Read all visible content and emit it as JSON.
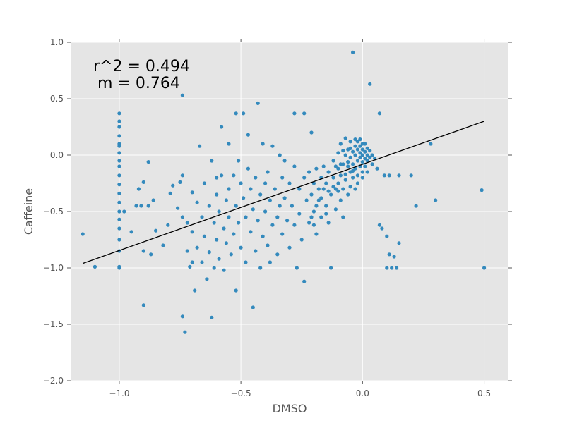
{
  "chart_data": {
    "type": "scatter",
    "xlabel": "DMSO",
    "ylabel": "Caffeine",
    "xlim": [
      -1.2,
      0.6
    ],
    "ylim": [
      -2.0,
      1.0
    ],
    "xticks": [
      -1.0,
      -0.5,
      0.0,
      0.5
    ],
    "xtick_labels": [
      "−1.0",
      "−0.5",
      "0.0",
      "0.5"
    ],
    "yticks": [
      1.0,
      0.5,
      0.0,
      -0.5,
      -1.0,
      -1.5,
      -2.0
    ],
    "ytick_labels": [
      "1.0",
      "0.5",
      "0.0",
      "−0.5",
      "−1.0",
      "−1.5",
      "−2.0"
    ],
    "grid": true,
    "annotations": [
      "r^2 = 0.494",
      "m = 0.764"
    ],
    "point_color": "#348abd",
    "line_color": "#000000",
    "background_color": "#e5e5e5",
    "fit_line": {
      "x": [
        -1.15,
        0.5
      ],
      "y": [
        -0.96,
        0.3
      ]
    },
    "points": [
      [
        -1.15,
        -0.7
      ],
      [
        -1.1,
        -0.99
      ],
      [
        -1.0,
        0.37
      ],
      [
        -1.0,
        0.3
      ],
      [
        -1.0,
        0.25
      ],
      [
        -1.0,
        0.17
      ],
      [
        -1.0,
        0.1
      ],
      [
        -1.0,
        0.08
      ],
      [
        -1.0,
        0.02
      ],
      [
        -1.0,
        -0.05
      ],
      [
        -1.0,
        -0.1
      ],
      [
        -1.0,
        -0.18
      ],
      [
        -1.0,
        -0.26
      ],
      [
        -1.0,
        -0.34
      ],
      [
        -1.0,
        -0.42
      ],
      [
        -1.0,
        -0.5
      ],
      [
        -1.0,
        -0.57
      ],
      [
        -1.0,
        -0.65
      ],
      [
        -1.0,
        -0.75
      ],
      [
        -1.0,
        -0.85
      ],
      [
        -1.0,
        -1.0
      ],
      [
        -1.0,
        -0.99
      ],
      [
        -0.98,
        -0.5
      ],
      [
        -0.95,
        -0.68
      ],
      [
        -0.93,
        -0.45
      ],
      [
        -0.92,
        -0.3
      ],
      [
        -0.91,
        -0.45
      ],
      [
        -0.9,
        -0.85
      ],
      [
        -0.9,
        -1.33
      ],
      [
        -0.9,
        -0.24
      ],
      [
        -0.88,
        -0.06
      ],
      [
        -0.88,
        -0.45
      ],
      [
        -0.87,
        -0.88
      ],
      [
        -0.86,
        -0.4
      ],
      [
        -0.85,
        -0.67
      ],
      [
        -0.82,
        -0.8
      ],
      [
        -0.8,
        -0.62
      ],
      [
        -0.79,
        -0.34
      ],
      [
        -0.78,
        -0.27
      ],
      [
        -0.76,
        -0.47
      ],
      [
        -0.75,
        -0.24
      ],
      [
        -0.74,
        0.53
      ],
      [
        -0.74,
        -0.18
      ],
      [
        -0.74,
        -0.55
      ],
      [
        -0.74,
        -1.43
      ],
      [
        -0.73,
        -1.57
      ],
      [
        -0.72,
        -0.6
      ],
      [
        -0.72,
        -0.85
      ],
      [
        -0.71,
        -0.99
      ],
      [
        -0.7,
        -0.33
      ],
      [
        -0.7,
        -0.68
      ],
      [
        -0.7,
        -0.95
      ],
      [
        -0.69,
        -1.2
      ],
      [
        -0.68,
        -0.42
      ],
      [
        -0.68,
        -0.82
      ],
      [
        -0.67,
        0.08
      ],
      [
        -0.66,
        -0.55
      ],
      [
        -0.66,
        -0.95
      ],
      [
        -0.65,
        -0.25
      ],
      [
        -0.65,
        -0.72
      ],
      [
        -0.64,
        -1.1
      ],
      [
        -0.63,
        -0.45
      ],
      [
        -0.63,
        -0.86
      ],
      [
        -0.62,
        -1.44
      ],
      [
        -0.62,
        -0.05
      ],
      [
        -0.61,
        -0.6
      ],
      [
        -0.61,
        -1.0
      ],
      [
        -0.6,
        -0.2
      ],
      [
        -0.6,
        -0.35
      ],
      [
        -0.6,
        -0.75
      ],
      [
        -0.59,
        -0.5
      ],
      [
        -0.59,
        -0.92
      ],
      [
        -0.58,
        0.25
      ],
      [
        -0.58,
        -0.18
      ],
      [
        -0.57,
        -0.65
      ],
      [
        -0.57,
        -1.02
      ],
      [
        -0.56,
        -0.4
      ],
      [
        -0.56,
        -0.78
      ],
      [
        -0.55,
        0.1
      ],
      [
        -0.55,
        -0.3
      ],
      [
        -0.55,
        -0.55
      ],
      [
        -0.54,
        -0.88
      ],
      [
        -0.53,
        -0.18
      ],
      [
        -0.53,
        -0.7
      ],
      [
        -0.52,
        0.37
      ],
      [
        -0.52,
        -0.45
      ],
      [
        -0.52,
        -1.2
      ],
      [
        -0.51,
        -0.05
      ],
      [
        -0.51,
        -0.6
      ],
      [
        -0.5,
        -0.25
      ],
      [
        -0.5,
        -0.82
      ],
      [
        -0.49,
        0.37
      ],
      [
        -0.49,
        -0.38
      ],
      [
        -0.48,
        -0.55
      ],
      [
        -0.48,
        -0.95
      ],
      [
        -0.47,
        0.18
      ],
      [
        -0.47,
        -0.12
      ],
      [
        -0.46,
        -0.3
      ],
      [
        -0.46,
        -0.68
      ],
      [
        -0.45,
        -1.35
      ],
      [
        -0.45,
        -0.48
      ],
      [
        -0.44,
        -0.2
      ],
      [
        -0.44,
        -0.85
      ],
      [
        -0.43,
        0.46
      ],
      [
        -0.43,
        -0.58
      ],
      [
        -0.42,
        -0.35
      ],
      [
        -0.42,
        -1.0
      ],
      [
        -0.41,
        0.1
      ],
      [
        -0.41,
        -0.72
      ],
      [
        -0.4,
        -0.25
      ],
      [
        -0.4,
        -0.5
      ],
      [
        -0.39,
        -0.15
      ],
      [
        -0.39,
        -0.8
      ],
      [
        -0.38,
        -0.4
      ],
      [
        -0.38,
        -0.95
      ],
      [
        -0.37,
        0.08
      ],
      [
        -0.37,
        -0.62
      ],
      [
        -0.36,
        -0.3
      ],
      [
        -0.35,
        -0.55
      ],
      [
        -0.35,
        -0.88
      ],
      [
        -0.34,
        0.0
      ],
      [
        -0.34,
        -0.45
      ],
      [
        -0.33,
        -0.2
      ],
      [
        -0.33,
        -0.7
      ],
      [
        -0.32,
        -0.05
      ],
      [
        -0.32,
        -0.38
      ],
      [
        -0.31,
        -0.58
      ],
      [
        -0.3,
        -0.25
      ],
      [
        -0.3,
        -0.82
      ],
      [
        -0.29,
        -0.45
      ],
      [
        -0.28,
        0.37
      ],
      [
        -0.28,
        -0.1
      ],
      [
        -0.28,
        -0.62
      ],
      [
        -0.27,
        -1.0
      ],
      [
        -0.26,
        -0.3
      ],
      [
        -0.26,
        -0.52
      ],
      [
        -0.25,
        -0.75
      ],
      [
        -0.24,
        0.37
      ],
      [
        -0.24,
        -0.2
      ],
      [
        -0.24,
        -1.12
      ],
      [
        -0.23,
        -0.4
      ],
      [
        -0.22,
        -0.15
      ],
      [
        -0.22,
        -0.6
      ],
      [
        -0.21,
        0.2
      ],
      [
        -0.21,
        -0.35
      ],
      [
        -0.2,
        -0.25
      ],
      [
        -0.2,
        -0.5
      ],
      [
        -0.19,
        -0.12
      ],
      [
        -0.19,
        -0.7
      ],
      [
        -0.18,
        -0.4
      ],
      [
        -0.17,
        -0.2
      ],
      [
        -0.17,
        -0.55
      ],
      [
        -0.16,
        -0.3
      ],
      [
        -0.16,
        -0.1
      ],
      [
        -0.15,
        -0.45
      ],
      [
        -0.15,
        -0.25
      ],
      [
        -0.14,
        -0.6
      ],
      [
        -0.14,
        -0.15
      ],
      [
        -0.13,
        -1.0
      ],
      [
        -0.13,
        -0.35
      ],
      [
        -0.12,
        -0.2
      ],
      [
        -0.12,
        -0.05
      ],
      [
        -0.11,
        -0.3
      ],
      [
        -0.11,
        -0.48
      ],
      [
        -0.1,
        -0.12
      ],
      [
        -0.1,
        -0.25
      ],
      [
        -0.1,
        0.02
      ],
      [
        -0.09,
        -0.4
      ],
      [
        -0.09,
        -0.18
      ],
      [
        -0.09,
        0.1
      ],
      [
        -0.08,
        -0.08
      ],
      [
        -0.08,
        -0.3
      ],
      [
        -0.08,
        -0.55
      ],
      [
        -0.07,
        0.0
      ],
      [
        -0.07,
        -0.22
      ],
      [
        -0.07,
        0.15
      ],
      [
        -0.06,
        -0.1
      ],
      [
        -0.06,
        -0.35
      ],
      [
        -0.06,
        0.05
      ],
      [
        -0.05,
        -0.15
      ],
      [
        -0.05,
        -0.02
      ],
      [
        -0.05,
        -0.28
      ],
      [
        -0.05,
        0.12
      ],
      [
        -0.04,
        -0.08
      ],
      [
        -0.04,
        0.03
      ],
      [
        -0.04,
        -0.2
      ],
      [
        -0.04,
        0.91
      ],
      [
        -0.03,
        0.0
      ],
      [
        -0.03,
        -0.12
      ],
      [
        -0.03,
        0.08
      ],
      [
        -0.03,
        -0.3
      ],
      [
        -0.02,
        -0.05
      ],
      [
        -0.02,
        0.05
      ],
      [
        -0.02,
        -0.18
      ],
      [
        -0.02,
        0.12
      ],
      [
        -0.01,
        -0.02
      ],
      [
        -0.01,
        0.02
      ],
      [
        -0.01,
        -0.1
      ],
      [
        -0.01,
        0.08
      ],
      [
        0.0,
        0.0
      ],
      [
        0.0,
        -0.06
      ],
      [
        0.0,
        0.05
      ],
      [
        0.0,
        -0.15
      ],
      [
        0.0,
        0.1
      ],
      [
        0.01,
        -0.03
      ],
      [
        0.01,
        0.03
      ],
      [
        0.01,
        -0.1
      ],
      [
        0.02,
        0.0
      ],
      [
        0.02,
        0.06
      ],
      [
        0.02,
        -0.05
      ],
      [
        0.03,
        0.63
      ],
      [
        0.03,
        -0.02
      ],
      [
        0.03,
        0.04
      ],
      [
        0.04,
        -0.08
      ],
      [
        0.04,
        0.0
      ],
      [
        0.05,
        -0.03
      ],
      [
        0.06,
        -0.12
      ],
      [
        0.07,
        0.37
      ],
      [
        0.07,
        -0.62
      ],
      [
        0.08,
        -0.65
      ],
      [
        0.09,
        -0.18
      ],
      [
        0.1,
        -0.72
      ],
      [
        0.1,
        -1.0
      ],
      [
        0.11,
        -0.18
      ],
      [
        0.11,
        -0.88
      ],
      [
        0.12,
        -1.0
      ],
      [
        0.13,
        -0.9
      ],
      [
        0.14,
        -1.0
      ],
      [
        0.15,
        -0.78
      ],
      [
        0.15,
        -0.18
      ],
      [
        0.2,
        -0.18
      ],
      [
        0.22,
        -0.45
      ],
      [
        0.28,
        0.1
      ],
      [
        0.3,
        -0.4
      ],
      [
        0.49,
        -0.31
      ],
      [
        0.5,
        -1.0
      ],
      [
        -0.06,
        -0.06
      ],
      [
        -0.05,
        0.06
      ],
      [
        -0.04,
        -0.14
      ],
      [
        -0.03,
        0.14
      ],
      [
        -0.02,
        -0.25
      ],
      [
        -0.01,
        0.14
      ],
      [
        0.0,
        -0.2
      ],
      [
        0.01,
        0.1
      ],
      [
        0.02,
        -0.15
      ],
      [
        -0.07,
        -0.17
      ],
      [
        -0.08,
        0.04
      ],
      [
        -0.09,
        -0.08
      ],
      [
        -0.1,
        -0.32
      ],
      [
        -0.11,
        -0.1
      ],
      [
        -0.12,
        -0.28
      ],
      [
        -0.14,
        -0.32
      ],
      [
        -0.15,
        -0.52
      ],
      [
        -0.17,
        -0.38
      ],
      [
        -0.18,
        -0.3
      ],
      [
        -0.19,
        -0.45
      ],
      [
        -0.2,
        -0.62
      ],
      [
        -0.21,
        -0.55
      ]
    ]
  }
}
